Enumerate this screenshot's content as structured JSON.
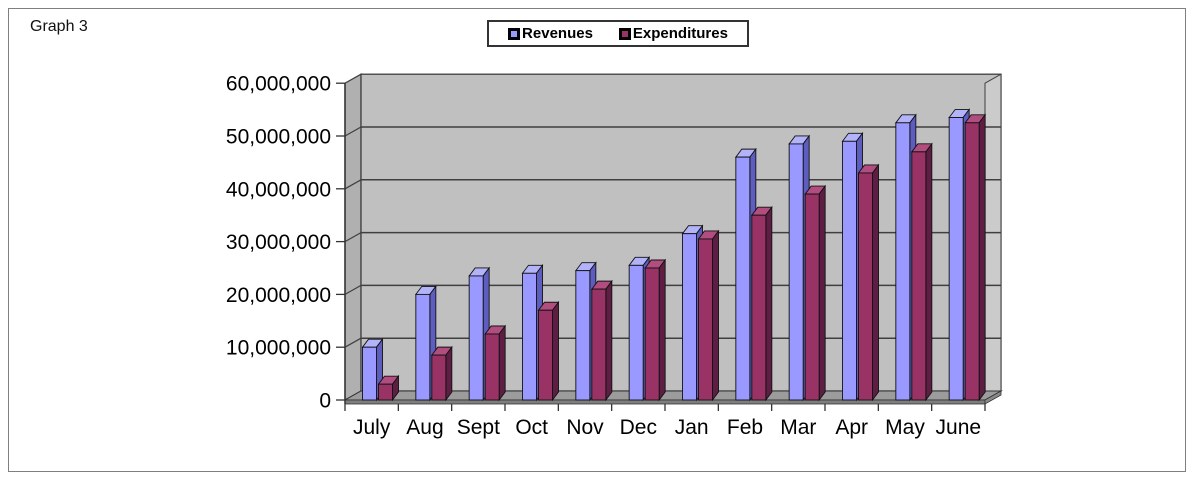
{
  "frame": {
    "label": "Graph 3"
  },
  "legend": {
    "items": [
      {
        "label": "Revenues",
        "color": "#9999FF"
      },
      {
        "label": "Expenditures",
        "color": "#993366"
      }
    ]
  },
  "chart_data": {
    "type": "bar",
    "style": "3d-clustered",
    "title": "Graph 3",
    "categories": [
      "July",
      "Aug",
      "Sept",
      "Oct",
      "Nov",
      "Dec",
      "Jan",
      "Feb",
      "Mar",
      "Apr",
      "May",
      "June"
    ],
    "series": [
      {
        "name": "Revenues",
        "color": "#9999FF",
        "color_top": "#B3B3FA",
        "color_side": "#5D5DC0",
        "values": [
          10000000,
          20000000,
          23500000,
          24000000,
          24500000,
          25500000,
          31500000,
          46000000,
          48500000,
          49000000,
          52500000,
          53500000
        ]
      },
      {
        "name": "Expenditures",
        "color": "#993366",
        "color_top": "#B24D80",
        "color_side": "#5E1E43",
        "values": [
          3000000,
          8500000,
          12500000,
          17000000,
          21000000,
          25000000,
          30500000,
          35000000,
          39000000,
          43000000,
          47000000,
          52500000
        ]
      }
    ],
    "ylim": [
      0,
      60000000
    ],
    "ytick_interval": 10000000,
    "ytick_labels": [
      "0",
      "10,000,000",
      "20,000,000",
      "30,000,000",
      "40,000,000",
      "50,000,000",
      "60,000,000"
    ],
    "xlabel": "",
    "ylabel": "",
    "grid": true,
    "legend_position": "top-center",
    "colors": {
      "plot_bg": "#C0C0C0",
      "side_wall": "#B0B0B0",
      "right_wall": "#CBCBCB",
      "floor": "#9C9C9C",
      "floor_edge": "#7E7E7E",
      "gridline": "#3F3F3F",
      "axis": "#333333",
      "text": "#000000"
    }
  }
}
